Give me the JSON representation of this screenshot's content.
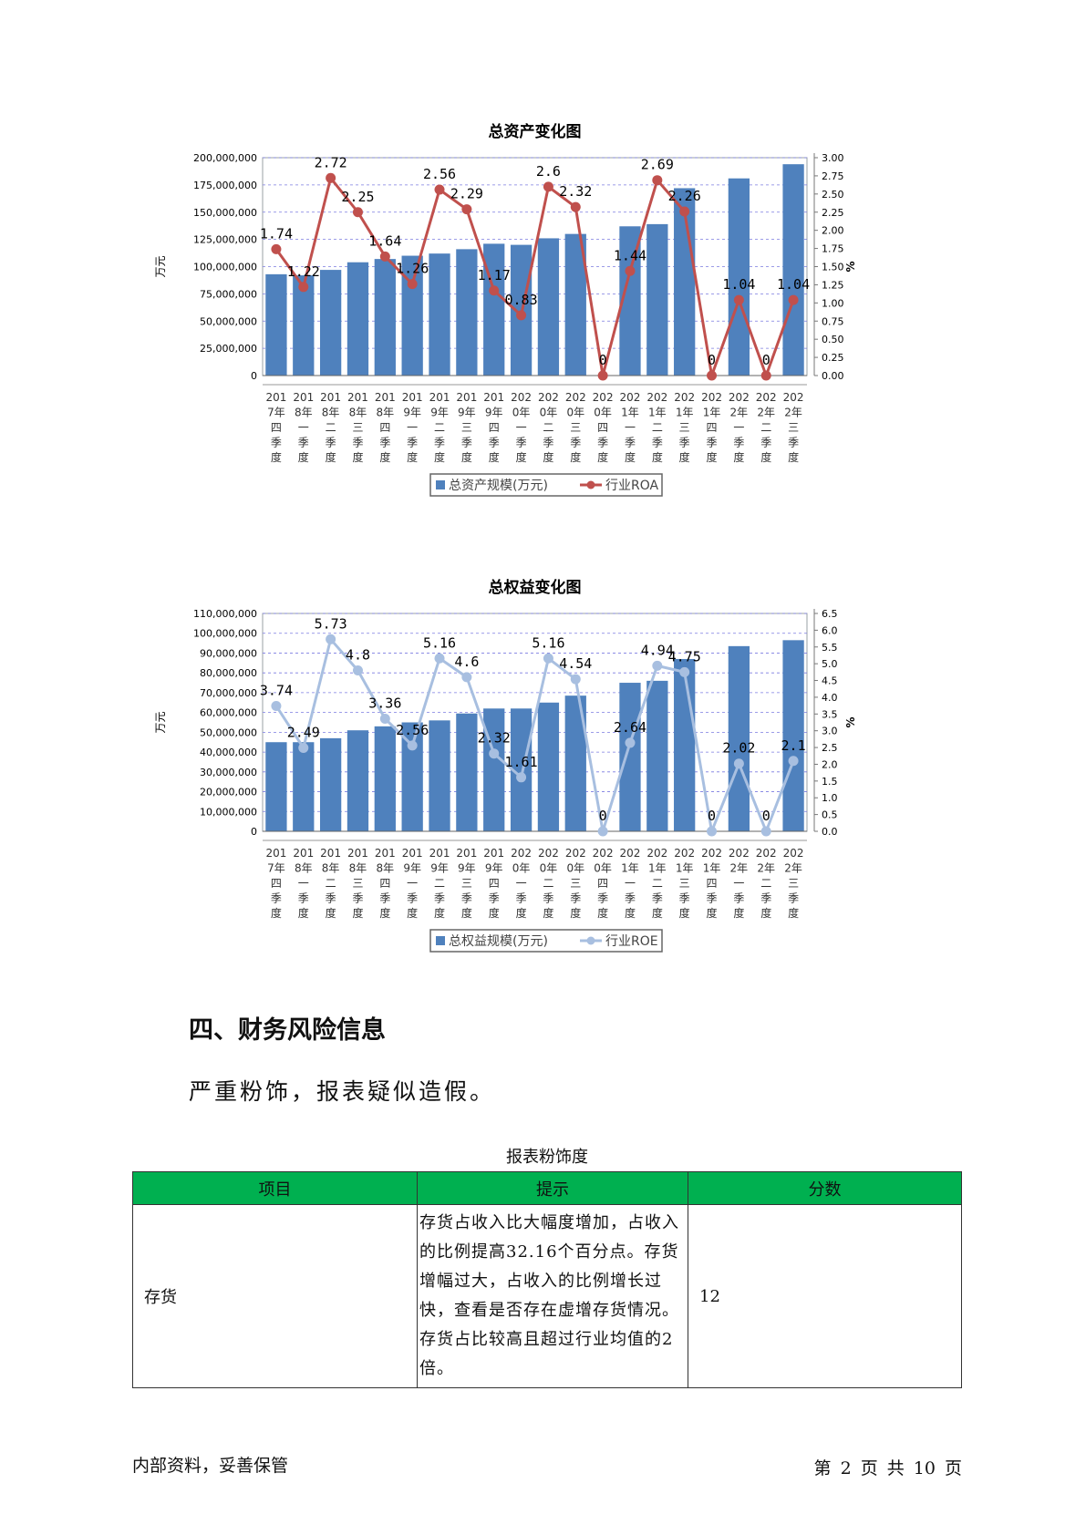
{
  "charts": [
    {
      "key": "assets",
      "chart_data": {
        "type": "bar",
        "title": "总资产变化图",
        "ylabel": "万元",
        "y2label": "%",
        "ylim": [
          0,
          200000000
        ],
        "y2lim": [
          0,
          3.0
        ],
        "categories": [
          "2017年四季度",
          "2018年一季度",
          "2018年二季度",
          "2018年三季度",
          "2018年四季度",
          "2019年一季度",
          "2019年二季度",
          "2019年三季度",
          "2019年四季度",
          "2020年一季度",
          "2020年二季度",
          "2020年三季度",
          "2020年四季度",
          "2021年一季度",
          "2021年二季度",
          "2021年三季度",
          "2021年四季度",
          "2022年一季度",
          "2022年二季度",
          "2022年三季度"
        ],
        "series": [
          {
            "name": "总资产规模(万元)",
            "type": "bar",
            "color": "#4f81bd",
            "values": [
              93000000,
              92000000,
              97000000,
              104000000,
              107000000,
              110000000,
              112000000,
              116000000,
              121000000,
              120000000,
              126000000,
              130000000,
              0,
              137000000,
              139000000,
              172000000,
              0,
              181000000,
              0,
              194000000
            ]
          },
          {
            "name": "行业ROA",
            "type": "line",
            "color": "#c0504d",
            "values": [
              1.74,
              1.22,
              2.72,
              2.25,
              1.64,
              1.26,
              2.56,
              2.29,
              1.17,
              0.83,
              2.6,
              2.32,
              0,
              1.44,
              2.69,
              2.26,
              0,
              1.04,
              0,
              1.04
            ],
            "labels": [
              "1.74",
              "1.22",
              "2.72",
              "2.25",
              "1.64",
              "1.26",
              "2.56",
              "2.29",
              "1.17",
              "0.83",
              "2.6",
              "2.32",
              "0",
              "1.44",
              "2.69",
              "2.26",
              "0",
              "1.04",
              "0",
              "1.04"
            ]
          }
        ],
        "y_ticks": [
          0,
          25000000,
          50000000,
          75000000,
          100000000,
          125000000,
          150000000,
          175000000,
          200000000
        ],
        "y_tick_labels": [
          "0",
          "25,000,000",
          "50,000,000",
          "75,000,000",
          "100,000,000",
          "125,000,000",
          "150,000,000",
          "175,000,000",
          "200,000,000"
        ],
        "y2_ticks": [
          0,
          0.25,
          0.5,
          0.75,
          1.0,
          1.25,
          1.5,
          1.75,
          2.0,
          2.25,
          2.5,
          2.75,
          3.0
        ],
        "y2_tick_labels": [
          "0.00",
          "0.25",
          "0.50",
          "0.75",
          "1.00",
          "1.25",
          "1.50",
          "1.75",
          "2.00",
          "2.25",
          "2.50",
          "2.75",
          "3.00"
        ],
        "grid": true,
        "legend": "bottom-center"
      }
    },
    {
      "key": "equity",
      "chart_data": {
        "type": "bar",
        "title": "总权益变化图",
        "ylabel": "万元",
        "y2label": "%",
        "ylim": [
          0,
          110000000
        ],
        "y2lim": [
          0,
          6.5
        ],
        "categories": [
          "2017年四季度",
          "2018年一季度",
          "2018年二季度",
          "2018年三季度",
          "2018年四季度",
          "2019年一季度",
          "2019年二季度",
          "2019年三季度",
          "2019年四季度",
          "2020年一季度",
          "2020年二季度",
          "2020年三季度",
          "2020年四季度",
          "2021年一季度",
          "2021年二季度",
          "2021年三季度",
          "2021年四季度",
          "2022年一季度",
          "2022年二季度",
          "2022年三季度"
        ],
        "series": [
          {
            "name": "总权益规模(万元)",
            "type": "bar",
            "color": "#4f81bd",
            "values": [
              45000000,
              45000000,
              47000000,
              51000000,
              53000000,
              55000000,
              56000000,
              59500000,
              62000000,
              62000000,
              65000000,
              68500000,
              0,
              75000000,
              76000000,
              87000000,
              0,
              93500000,
              0,
              96500000
            ]
          },
          {
            "name": "行业ROE",
            "type": "line",
            "color": "#a8bfe0",
            "values": [
              3.74,
              2.49,
              5.73,
              4.8,
              3.36,
              2.56,
              5.16,
              4.6,
              2.32,
              1.61,
              5.16,
              4.54,
              0,
              2.64,
              4.94,
              4.75,
              0,
              2.02,
              0,
              2.1
            ],
            "labels": [
              "3.74",
              "2.49",
              "5.73",
              "4.8",
              "3.36",
              "2.56",
              "5.16",
              "4.6",
              "2.32",
              "1.61",
              "5.16",
              "4.54",
              "0",
              "2.64",
              "4.94",
              "4.75",
              "0",
              "2.02",
              "0",
              "2.1"
            ]
          }
        ],
        "y_ticks": [
          0,
          10000000,
          20000000,
          30000000,
          40000000,
          50000000,
          60000000,
          70000000,
          80000000,
          90000000,
          100000000,
          110000000
        ],
        "y_tick_labels": [
          "0",
          "10,000,000",
          "20,000,000",
          "30,000,000",
          "40,000,000",
          "50,000,000",
          "60,000,000",
          "70,000,000",
          "80,000,000",
          "90,000,000",
          "100,000,000",
          "110,000,000"
        ],
        "y2_ticks": [
          0,
          0.5,
          1,
          1.5,
          2,
          2.5,
          3,
          3.5,
          4,
          4.5,
          5,
          5.5,
          6,
          6.5
        ],
        "y2_tick_labels": [
          "0.0",
          "0.5",
          "1.0",
          "1.5",
          "2.0",
          "2.5",
          "3.0",
          "3.5",
          "4.0",
          "4.5",
          "5.0",
          "5.5",
          "6.0",
          "6.5"
        ],
        "grid": true,
        "legend": "bottom-center"
      }
    }
  ],
  "section": {
    "heading": "四、财务风险信息",
    "text": "严重粉饰，报表疑似造假。"
  },
  "table": {
    "caption": "报表粉饰度",
    "header_color": "#00b050",
    "headers": [
      "项目",
      "提示",
      "分数"
    ],
    "rows": [
      {
        "item": "存货",
        "hint": "存货占收入比大幅度增加，占收入的比例提高32.16个百分点。存货增幅过大，占收入的比例增长过快，查看是否存在虚增存货情况。存货占比较高且超过行业均值的2倍。",
        "score": "12"
      }
    ]
  },
  "footer": {
    "left": "内部资料，妥善保管",
    "right": "第 2 页   共 10 页"
  }
}
